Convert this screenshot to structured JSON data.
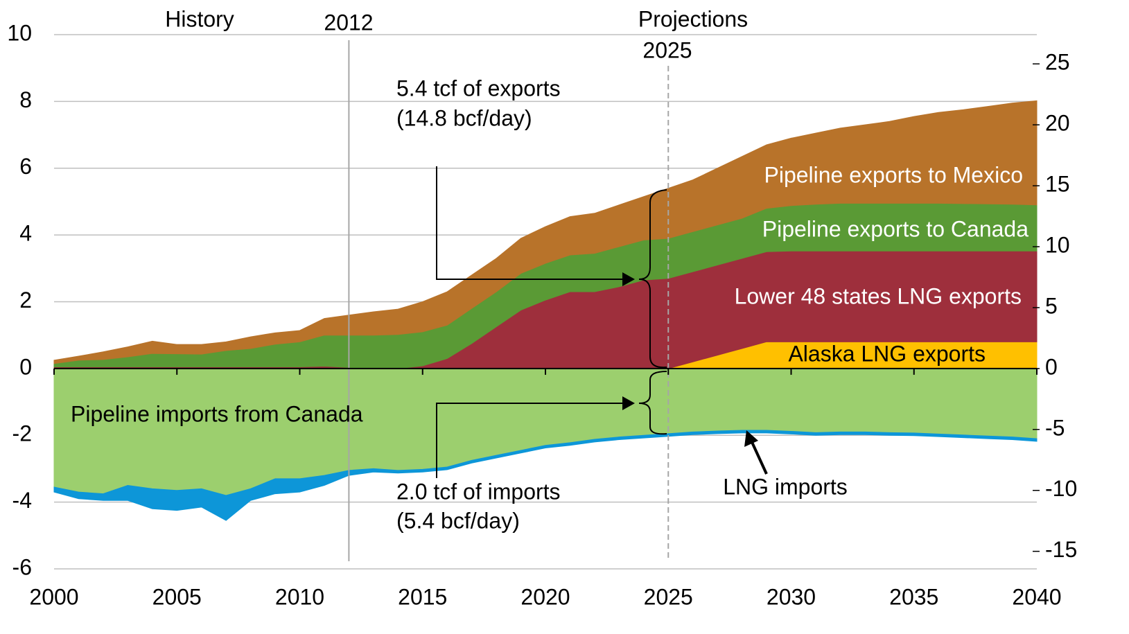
{
  "chart_data": {
    "type": "area",
    "x": [
      2000,
      2001,
      2002,
      2003,
      2004,
      2005,
      2006,
      2007,
      2008,
      2009,
      2010,
      2011,
      2012,
      2013,
      2014,
      2015,
      2016,
      2017,
      2018,
      2019,
      2020,
      2021,
      2022,
      2023,
      2024,
      2025,
      2026,
      2027,
      2028,
      2029,
      2030,
      2031,
      2032,
      2033,
      2034,
      2035,
      2036,
      2037,
      2038,
      2039,
      2040
    ],
    "series": [
      {
        "name": "Alaska LNG exports",
        "color": "#ffc000",
        "values": [
          0,
          0,
          0,
          0,
          0,
          0,
          0,
          0,
          0,
          0,
          0,
          0,
          0,
          0,
          0,
          0,
          0,
          0,
          0,
          0,
          0,
          0,
          0,
          0,
          0,
          0,
          0.2,
          0.4,
          0.6,
          0.8,
          0.8,
          0.8,
          0.8,
          0.8,
          0.8,
          0.8,
          0.8,
          0.8,
          0.8,
          0.8,
          0.8
        ]
      },
      {
        "name": "Lower 48 states LNG exports",
        "color": "#9e2f3c",
        "values": [
          0.05,
          0.05,
          0.05,
          0.05,
          0.05,
          0.05,
          0.05,
          0.05,
          0.05,
          0.05,
          0.05,
          0.07,
          0.03,
          0,
          0,
          0.08,
          0.3,
          0.75,
          1.25,
          1.75,
          2.05,
          2.3,
          2.3,
          2.45,
          2.65,
          2.7,
          2.7,
          2.7,
          2.7,
          2.7,
          2.72,
          2.72,
          2.72,
          2.72,
          2.72,
          2.72,
          2.72,
          2.72,
          2.72,
          2.72,
          2.72
        ]
      },
      {
        "name": "Pipeline exports to Canada",
        "color": "#5a9a35",
        "values": [
          0.1,
          0.2,
          0.22,
          0.3,
          0.4,
          0.39,
          0.38,
          0.49,
          0.55,
          0.68,
          0.75,
          0.93,
          0.97,
          1.0,
          1.02,
          1.02,
          1.0,
          1.05,
          1.05,
          1.1,
          1.1,
          1.1,
          1.15,
          1.2,
          1.2,
          1.2,
          1.2,
          1.2,
          1.2,
          1.3,
          1.36,
          1.4,
          1.43,
          1.43,
          1.43,
          1.43,
          1.43,
          1.42,
          1.41,
          1.4,
          1.38
        ]
      },
      {
        "name": "Pipeline exports to Mexico",
        "color": "#b8732a",
        "values": [
          0.1,
          0.12,
          0.23,
          0.3,
          0.37,
          0.28,
          0.29,
          0.26,
          0.35,
          0.34,
          0.34,
          0.5,
          0.6,
          0.7,
          0.76,
          0.9,
          1.0,
          1.0,
          1.0,
          1.05,
          1.1,
          1.15,
          1.2,
          1.25,
          1.3,
          1.5,
          1.55,
          1.7,
          1.85,
          1.9,
          2.02,
          2.13,
          2.25,
          2.35,
          2.45,
          2.6,
          2.72,
          2.81,
          2.92,
          3.03,
          3.12
        ]
      },
      {
        "name": "Pipeline imports from Canada",
        "color": "#9ccf6e",
        "values": [
          -3.55,
          -3.7,
          -3.75,
          -3.5,
          -3.6,
          -3.65,
          -3.6,
          -3.8,
          -3.6,
          -3.3,
          -3.3,
          -3.2,
          -3.05,
          -3.0,
          -3.05,
          -3.02,
          -2.95,
          -2.75,
          -2.6,
          -2.45,
          -2.3,
          -2.22,
          -2.12,
          -2.05,
          -2.0,
          -1.95,
          -1.9,
          -1.87,
          -1.85,
          -1.85,
          -1.88,
          -1.92,
          -1.9,
          -1.9,
          -1.92,
          -1.93,
          -1.96,
          -1.99,
          -2.02,
          -2.05,
          -2.1
        ]
      },
      {
        "name": "LNG imports",
        "color": "#0d96d8",
        "values": [
          -0.15,
          -0.2,
          -0.2,
          -0.45,
          -0.6,
          -0.6,
          -0.55,
          -0.75,
          -0.35,
          -0.45,
          -0.4,
          -0.3,
          -0.15,
          -0.1,
          -0.08,
          -0.08,
          -0.08,
          -0.08,
          -0.08,
          -0.08,
          -0.08,
          -0.08,
          -0.08,
          -0.08,
          -0.08,
          -0.08,
          -0.08,
          -0.08,
          -0.08,
          -0.08,
          -0.08,
          -0.08,
          -0.08,
          -0.08,
          -0.08,
          -0.08,
          -0.08,
          -0.08,
          -0.08,
          -0.08,
          -0.08
        ]
      }
    ],
    "xlim": [
      2000,
      2040
    ],
    "xticks": [
      2000,
      2005,
      2010,
      2015,
      2020,
      2025,
      2030,
      2035,
      2040
    ],
    "ylim": [
      -6,
      10
    ],
    "yticks": [
      -6,
      -4,
      -2,
      0,
      2,
      4,
      6,
      8,
      10
    ],
    "y2lim": [
      -16.44,
      27.4
    ],
    "y2ticks": [
      -15,
      -10,
      -5,
      0,
      5,
      10,
      15,
      20,
      25
    ],
    "grid": true,
    "stacked": true,
    "vlines": [
      {
        "x": 2012,
        "label": "2012",
        "style": "solid"
      },
      {
        "x": 2025,
        "label": "2025",
        "style": "dashed"
      }
    ],
    "period_labels": [
      "History",
      "Projections"
    ],
    "annotations": [
      {
        "lines": [
          "5.4 tcf of exports",
          "(14.8 bcf/day)"
        ]
      },
      {
        "lines": [
          "2.0 tcf of imports",
          "(5.4 bcf/day)"
        ]
      }
    ]
  }
}
